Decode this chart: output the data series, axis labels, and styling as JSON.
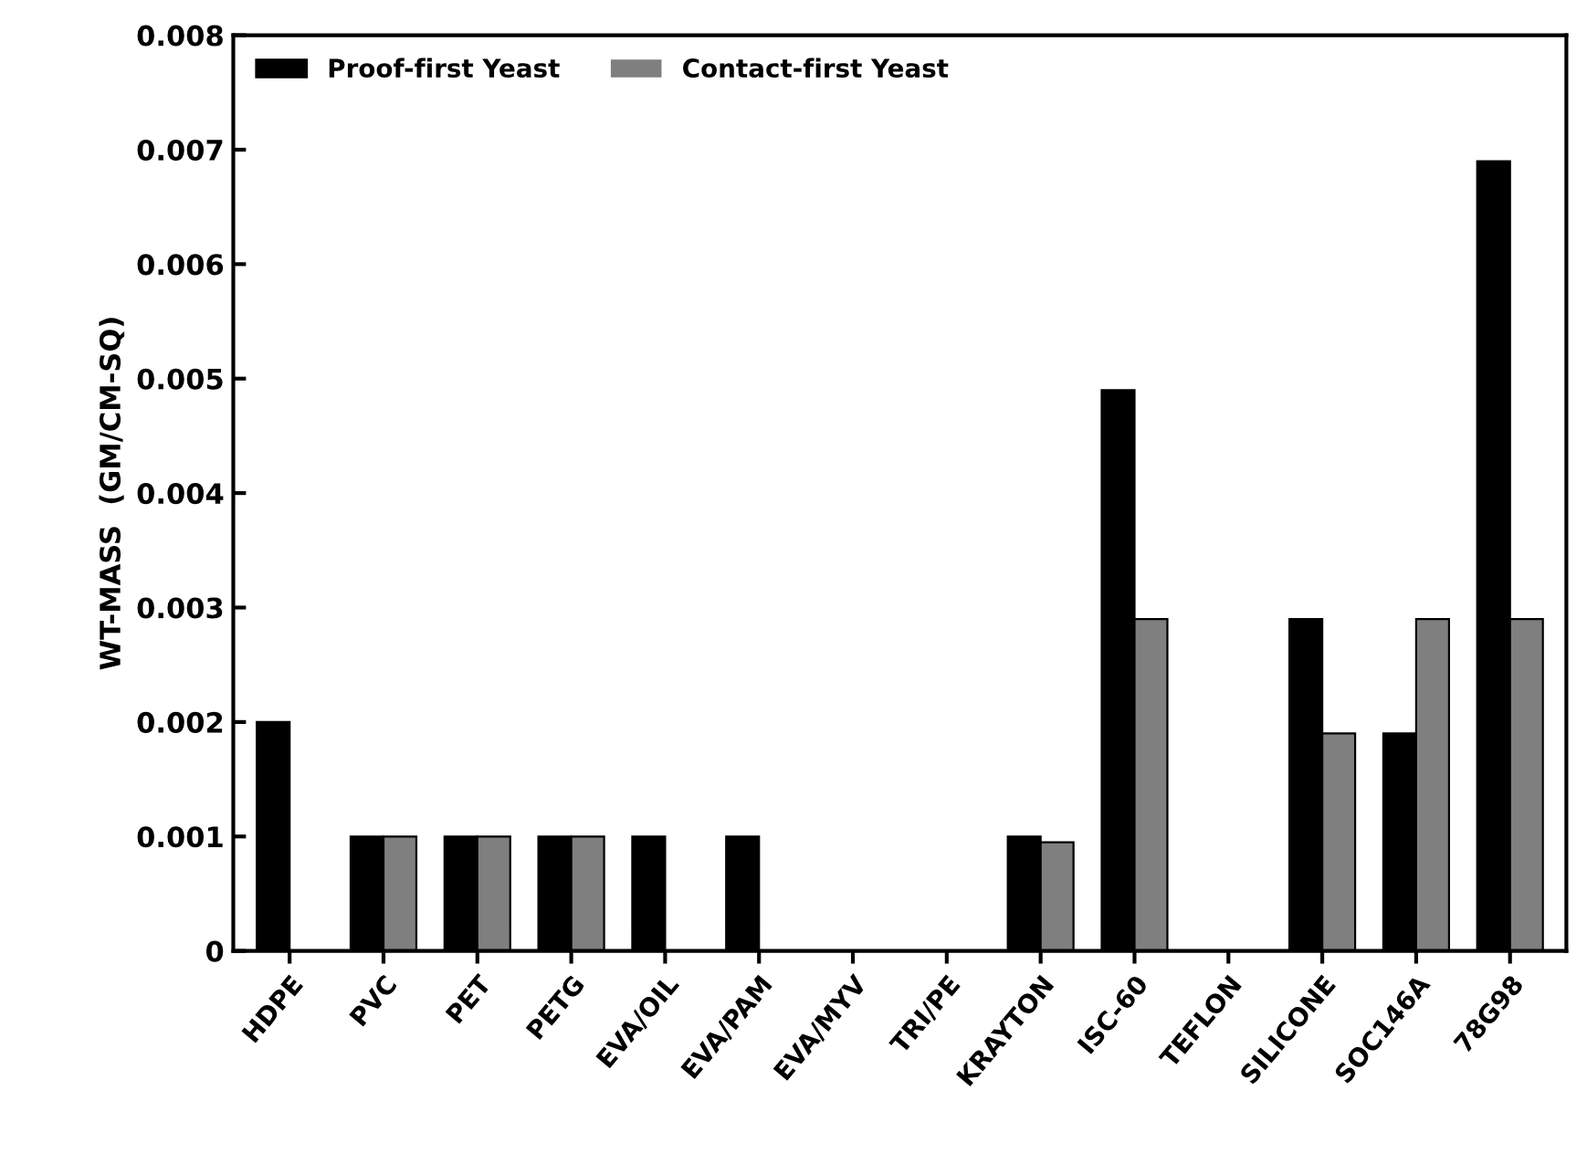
{
  "chart_data": {
    "type": "bar",
    "ylabel": "WT-MASS  (GM/CM-SQ)",
    "categories": [
      "HDPE",
      "PVC",
      "PET",
      "PETG",
      "EVA/OIL",
      "EVA/PAM",
      "EVA/MYV",
      "TRI/PE",
      "KRAYTON",
      "ISC-60",
      "TEFLON",
      "SILICONE",
      "SOC146A",
      "78G98"
    ],
    "series": [
      {
        "name": "Proof-first Yeast",
        "color": "#000000",
        "values": [
          0.002,
          0.001,
          0.001,
          0.001,
          0.001,
          0.001,
          0,
          0,
          0.001,
          0.0049,
          0,
          0.0029,
          0.0019,
          0.0069
        ]
      },
      {
        "name": "Contact-first Yeast",
        "color": "#7f7f7f",
        "values": [
          0,
          0.001,
          0.001,
          0.001,
          0,
          0,
          0,
          0,
          0.00095,
          0.0029,
          0,
          0.0019,
          0.0029,
          0.0029
        ]
      }
    ],
    "ylim": [
      0,
      0.008
    ],
    "yticks": [
      0,
      0.001,
      0.002,
      0.003,
      0.004,
      0.005,
      0.006,
      0.007,
      0.008
    ],
    "grid": false,
    "legend": "top left"
  }
}
